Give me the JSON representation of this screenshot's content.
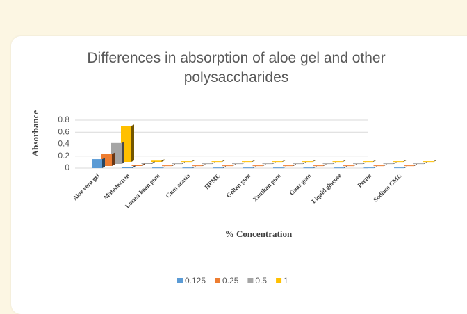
{
  "chart_data": {
    "type": "bar3d",
    "title": "Differences in absorption of aloe gel and other polysaccharides",
    "x_label": "% Concentration",
    "y_label": "Absorbance",
    "categories": [
      "Aloe vera gel",
      "Matodextrin",
      "Locust bean gum",
      "Gum acasia",
      "HPMC",
      "Gellan gum",
      "Xanthan gum",
      "Guar gum",
      "Liquid glucose",
      "Pectin",
      "Sodium CMC"
    ],
    "series": [
      {
        "name": "0.125",
        "color": "#5b9bd5",
        "values": [
          0.15,
          0.02,
          0.01,
          0.01,
          0.01,
          0.01,
          0.01,
          0.01,
          0.01,
          0.01,
          0.01
        ]
      },
      {
        "name": "0.25",
        "color": "#ed7d31",
        "values": [
          0.2,
          0.02,
          0.01,
          0.01,
          0.01,
          0.01,
          0.01,
          0.01,
          0.01,
          0.01,
          0.01
        ]
      },
      {
        "name": "0.5",
        "color": "#a5a5a5",
        "values": [
          0.35,
          0.02,
          0.01,
          0.01,
          0.01,
          0.01,
          0.01,
          0.01,
          0.01,
          0.01,
          0.01
        ]
      },
      {
        "name": "1",
        "color": "#ffc000",
        "values": [
          0.6,
          0.02,
          0.01,
          0.01,
          0.01,
          0.01,
          0.01,
          0.01,
          0.01,
          0.01,
          0.01
        ]
      }
    ],
    "ylim": [
      0,
      0.8
    ],
    "yticks": [
      0,
      0.2,
      0.4,
      0.6,
      0.8
    ],
    "grid": true
  }
}
